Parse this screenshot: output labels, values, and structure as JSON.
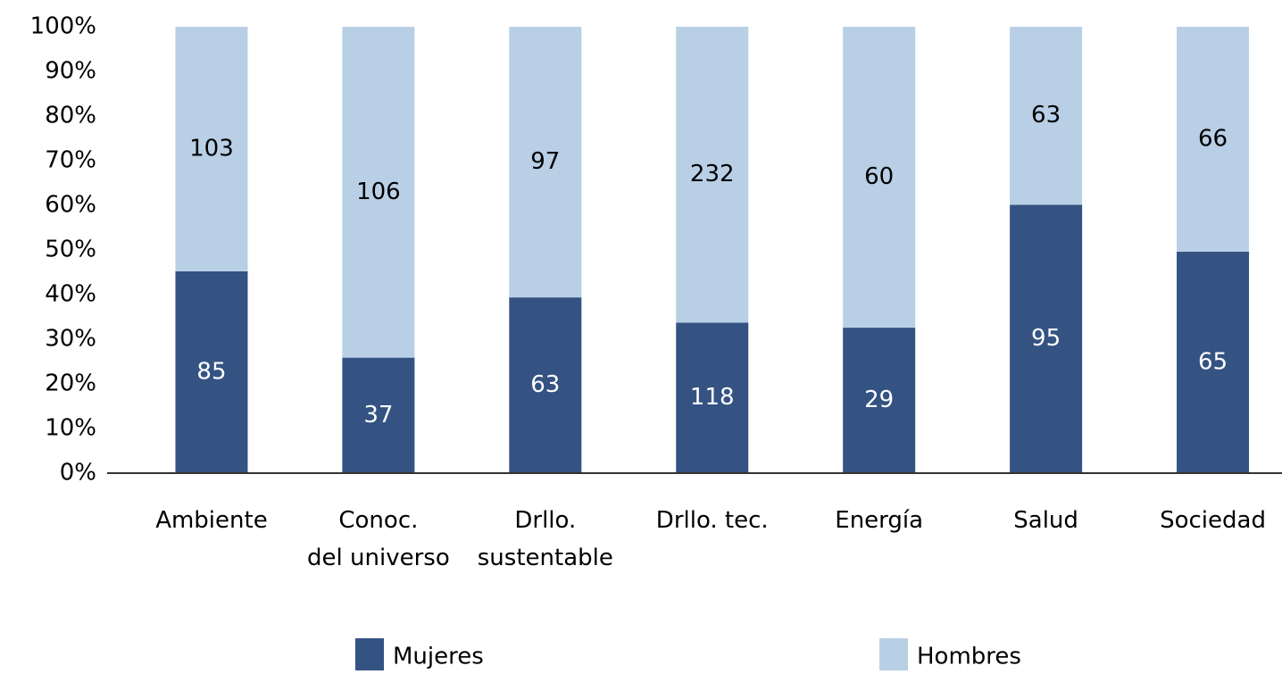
{
  "chart_data": {
    "type": "stacked_percent",
    "categories": [
      "Ambiente",
      "Conoc.\ndel universo",
      "Drllo.\nsustentable",
      "Drllo. tec.",
      "Energía",
      "Salud",
      "Sociedad"
    ],
    "series": [
      {
        "name": "Mujeres",
        "color": "#345383",
        "label_color": "#ffffff",
        "values": [
          85,
          37,
          63,
          118,
          29,
          95,
          65
        ]
      },
      {
        "name": "Hombres",
        "color": "#b8cfe6",
        "label_color": "#000000",
        "values": [
          103,
          106,
          97,
          232,
          60,
          63,
          66
        ]
      }
    ],
    "ylim": [
      0,
      100
    ],
    "yticks": [
      {
        "value": 0,
        "label": "0%"
      },
      {
        "value": 10,
        "label": "10%"
      },
      {
        "value": 20,
        "label": "20%"
      },
      {
        "value": 30,
        "label": "30%"
      },
      {
        "value": 40,
        "label": "40%"
      },
      {
        "value": 50,
        "label": "50%"
      },
      {
        "value": 60,
        "label": "60%"
      },
      {
        "value": 70,
        "label": "70%"
      },
      {
        "value": 80,
        "label": "80%"
      },
      {
        "value": 90,
        "label": "90%"
      },
      {
        "value": 100,
        "label": "100%"
      }
    ],
    "legend": "bottom"
  }
}
